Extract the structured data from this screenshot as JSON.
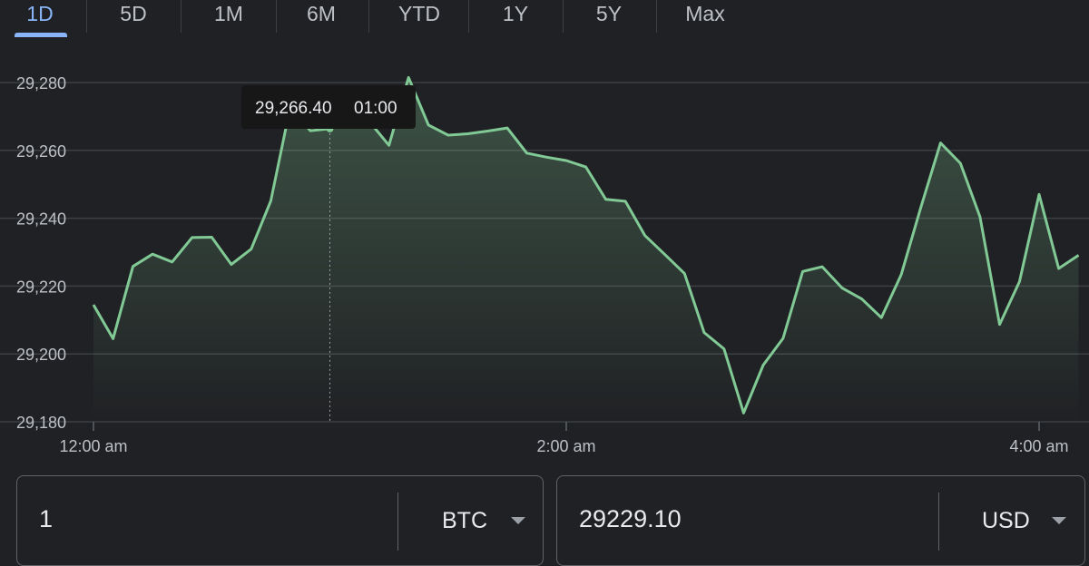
{
  "tabs": [
    "1D",
    "5D",
    "1M",
    "6M",
    "YTD",
    "1Y",
    "5Y",
    "Max"
  ],
  "active_tab": "1D",
  "tooltip": {
    "price": "29,266.40",
    "time": "01:00"
  },
  "converter": {
    "from": {
      "value": "1",
      "unit": "BTC"
    },
    "to": {
      "value": "29229.10",
      "unit": "USD"
    }
  },
  "colors": {
    "line": "#81c995",
    "grid": "#3c4043",
    "text": "#bdc1c6",
    "accent": "#8ab4f8"
  },
  "chart_data": {
    "type": "area",
    "ylim": [
      29180,
      29290
    ],
    "yticks": [
      29280,
      29260,
      29240,
      29220,
      29200,
      29180
    ],
    "ytick_labels": [
      "29,280",
      "29,260",
      "29,240",
      "29,220",
      "29,200",
      "29,180"
    ],
    "xlim_hours": [
      -0.03,
      4.12
    ],
    "xticks": [
      {
        "hour": 0,
        "label": "12:00 am"
      },
      {
        "hour": 2,
        "label": "2:00 am"
      },
      {
        "hour": 4,
        "label": "4:00 am"
      }
    ],
    "hover_hour": 1.0,
    "series": [
      {
        "x_hours": [
          0.0,
          0.083,
          0.167,
          0.25,
          0.333,
          0.417,
          0.5,
          0.583,
          0.667,
          0.75,
          0.833,
          0.917,
          1.0,
          1.083,
          1.167,
          1.25,
          1.333,
          1.417,
          1.5,
          1.583,
          1.667,
          1.75,
          1.833,
          1.917,
          2.0,
          2.083,
          2.167,
          2.25,
          2.333,
          2.417,
          2.5,
          2.583,
          2.667,
          2.75,
          2.833,
          2.917,
          3.0,
          3.083,
          3.167,
          3.25,
          3.333,
          3.417,
          3.5,
          3.583,
          3.667,
          3.75,
          3.833,
          3.917,
          4.0,
          4.083,
          4.167
        ],
        "values": [
          29214.5,
          29204.5,
          29225.8,
          29229.4,
          29227.1,
          29234.3,
          29234.4,
          29226.4,
          29230.9,
          29245.1,
          29273.0,
          29265.8,
          29266.4,
          29275.0,
          29268.5,
          29261.5,
          29281.5,
          29267.5,
          29264.5,
          29264.9,
          29265.7,
          29266.6,
          29259.2,
          29258.0,
          29257.0,
          29255.1,
          29245.6,
          29245.0,
          29234.9,
          29229.3,
          29223.7,
          29206.3,
          29201.5,
          29182.6,
          29196.7,
          29204.6,
          29224.3,
          29225.7,
          29219.4,
          29216.2,
          29210.7,
          29223.4,
          29243.3,
          29262.2,
          29256.2,
          29240.4,
          29208.7,
          29221.3,
          29247.0,
          29225.2,
          29229.1
        ]
      }
    ]
  }
}
